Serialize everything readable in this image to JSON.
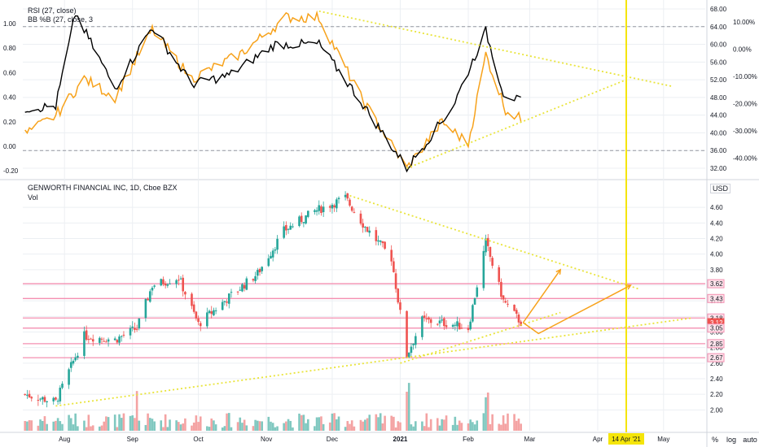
{
  "colors": {
    "up": "#26a69a",
    "down": "#ef5350",
    "rsi": "#000000",
    "bbp": "#f7a21b",
    "trend": "#e9e43a",
    "arrow": "#f7a21b",
    "level_line": "#f48fb1",
    "cursor": "#f5e50a",
    "grid": "#eceff3",
    "volume_up": "#80c8c0",
    "volume_down": "#f4a3a3"
  },
  "top_pane": {
    "legend_rsi": "RSI (27, close)",
    "legend_bbp": "BB %B (27, close, 3",
    "left_ticks": [
      "1.00",
      "0.80",
      "0.60",
      "0.40",
      "0.20",
      "0.00",
      "-0.20"
    ],
    "right_ticks": [
      "68.00",
      "64.00",
      "60.00",
      "56.00",
      "52.00",
      "48.00",
      "44.00",
      "40.00",
      "36.00",
      "32.00"
    ],
    "pct_ticks": [
      "10.00%",
      "0.00%",
      "-10.00%",
      "-20.00%",
      "-30.00%",
      "-40.00%"
    ]
  },
  "bottom_pane": {
    "title": "GENWORTH FINANCIAL INC, 1D, Cboe BZX",
    "vol_label": "Vol",
    "currency": "USD",
    "price_ticks": [
      "4.60",
      "4.40",
      "4.20",
      "4.00",
      "3.80",
      "3.60",
      "3.40",
      "3.20",
      "3.00",
      "2.80",
      "2.60",
      "2.40",
      "2.20",
      "2.00"
    ],
    "level_tags": [
      {
        "label": "3.62",
        "value": 3.62,
        "kind": "level"
      },
      {
        "label": "3.43",
        "value": 3.43,
        "kind": "level"
      },
      {
        "label": "3.18",
        "value": 3.18,
        "kind": "level"
      },
      {
        "label": "3.12",
        "value": 3.12,
        "kind": "current"
      },
      {
        "label": "3.05",
        "value": 3.05,
        "kind": "level"
      },
      {
        "label": "2.85",
        "value": 2.85,
        "kind": "level"
      },
      {
        "label": "2.67",
        "value": 2.67,
        "kind": "level"
      }
    ]
  },
  "time_axis": {
    "labels": [
      "Aug",
      "Sep",
      "Oct",
      "Nov",
      "Dec",
      "2021",
      "Feb",
      "Mar",
      "Apr",
      "May"
    ],
    "cursor_label": "14 Apr '21"
  },
  "chart_data": {
    "type": "candlestick",
    "title": "GENWORTH FINANCIAL INC, 1D, Cboe BZX",
    "x_range": [
      "2020-07-13",
      "2021-05-20"
    ],
    "cursor_date": "2021-04-14",
    "price_ylim": [
      1.92,
      4.8
    ],
    "ohlc_keypoints": [
      {
        "date": "2020-07-14",
        "close": 2.2
      },
      {
        "date": "2020-07-28",
        "close": 2.1
      },
      {
        "date": "2020-08-10",
        "close": 2.95
      },
      {
        "date": "2020-08-24",
        "close": 2.9
      },
      {
        "date": "2020-09-03",
        "close": 3.05
      },
      {
        "date": "2020-09-10",
        "close": 3.6
      },
      {
        "date": "2020-09-22",
        "close": 3.7
      },
      {
        "date": "2020-10-01",
        "close": 3.1
      },
      {
        "date": "2020-10-15",
        "close": 3.45
      },
      {
        "date": "2020-10-28",
        "close": 3.75
      },
      {
        "date": "2020-11-09",
        "close": 4.3
      },
      {
        "date": "2020-11-23",
        "close": 4.55
      },
      {
        "date": "2020-12-07",
        "close": 4.72
      },
      {
        "date": "2020-12-16",
        "close": 4.35
      },
      {
        "date": "2020-12-28",
        "close": 3.95
      },
      {
        "date": "2021-01-04",
        "close": 2.7
      },
      {
        "date": "2021-01-11",
        "close": 3.15
      },
      {
        "date": "2021-01-25",
        "close": 3.1
      },
      {
        "date": "2021-02-01",
        "close": 3.05
      },
      {
        "date": "2021-02-09",
        "close": 4.15
      },
      {
        "date": "2021-02-17",
        "close": 3.4
      },
      {
        "date": "2021-02-25",
        "close": 3.12
      }
    ],
    "rsi_keypoints": [
      {
        "date": "2020-07-14",
        "value": 45.5
      },
      {
        "date": "2020-07-28",
        "value": 46
      },
      {
        "date": "2020-08-06",
        "value": 67
      },
      {
        "date": "2020-08-24",
        "value": 50
      },
      {
        "date": "2020-09-10",
        "value": 64
      },
      {
        "date": "2020-09-28",
        "value": 51
      },
      {
        "date": "2020-10-15",
        "value": 53
      },
      {
        "date": "2020-11-05",
        "value": 60
      },
      {
        "date": "2020-11-25",
        "value": 60
      },
      {
        "date": "2020-12-10",
        "value": 50
      },
      {
        "date": "2021-01-04",
        "value": 32
      },
      {
        "date": "2021-01-25",
        "value": 46
      },
      {
        "date": "2021-02-09",
        "value": 63
      },
      {
        "date": "2021-02-17",
        "value": 49
      },
      {
        "date": "2021-02-25",
        "value": 47
      }
    ],
    "bbp_keypoints": [
      {
        "date": "2020-07-14",
        "value": 0.1
      },
      {
        "date": "2020-07-28",
        "value": 0.25
      },
      {
        "date": "2020-08-10",
        "value": 0.55
      },
      {
        "date": "2020-08-24",
        "value": 0.4
      },
      {
        "date": "2020-09-10",
        "value": 0.95
      },
      {
        "date": "2020-09-28",
        "value": 0.55
      },
      {
        "date": "2020-10-20",
        "value": 0.75
      },
      {
        "date": "2020-11-10",
        "value": 1.05
      },
      {
        "date": "2020-11-25",
        "value": 1.05
      },
      {
        "date": "2020-12-14",
        "value": 0.4
      },
      {
        "date": "2021-01-04",
        "value": -0.18
      },
      {
        "date": "2021-01-20",
        "value": 0.2
      },
      {
        "date": "2021-02-01",
        "value": 0.02
      },
      {
        "date": "2021-02-09",
        "value": 0.75
      },
      {
        "date": "2021-02-18",
        "value": 0.3
      },
      {
        "date": "2021-02-25",
        "value": 0.22
      }
    ]
  }
}
